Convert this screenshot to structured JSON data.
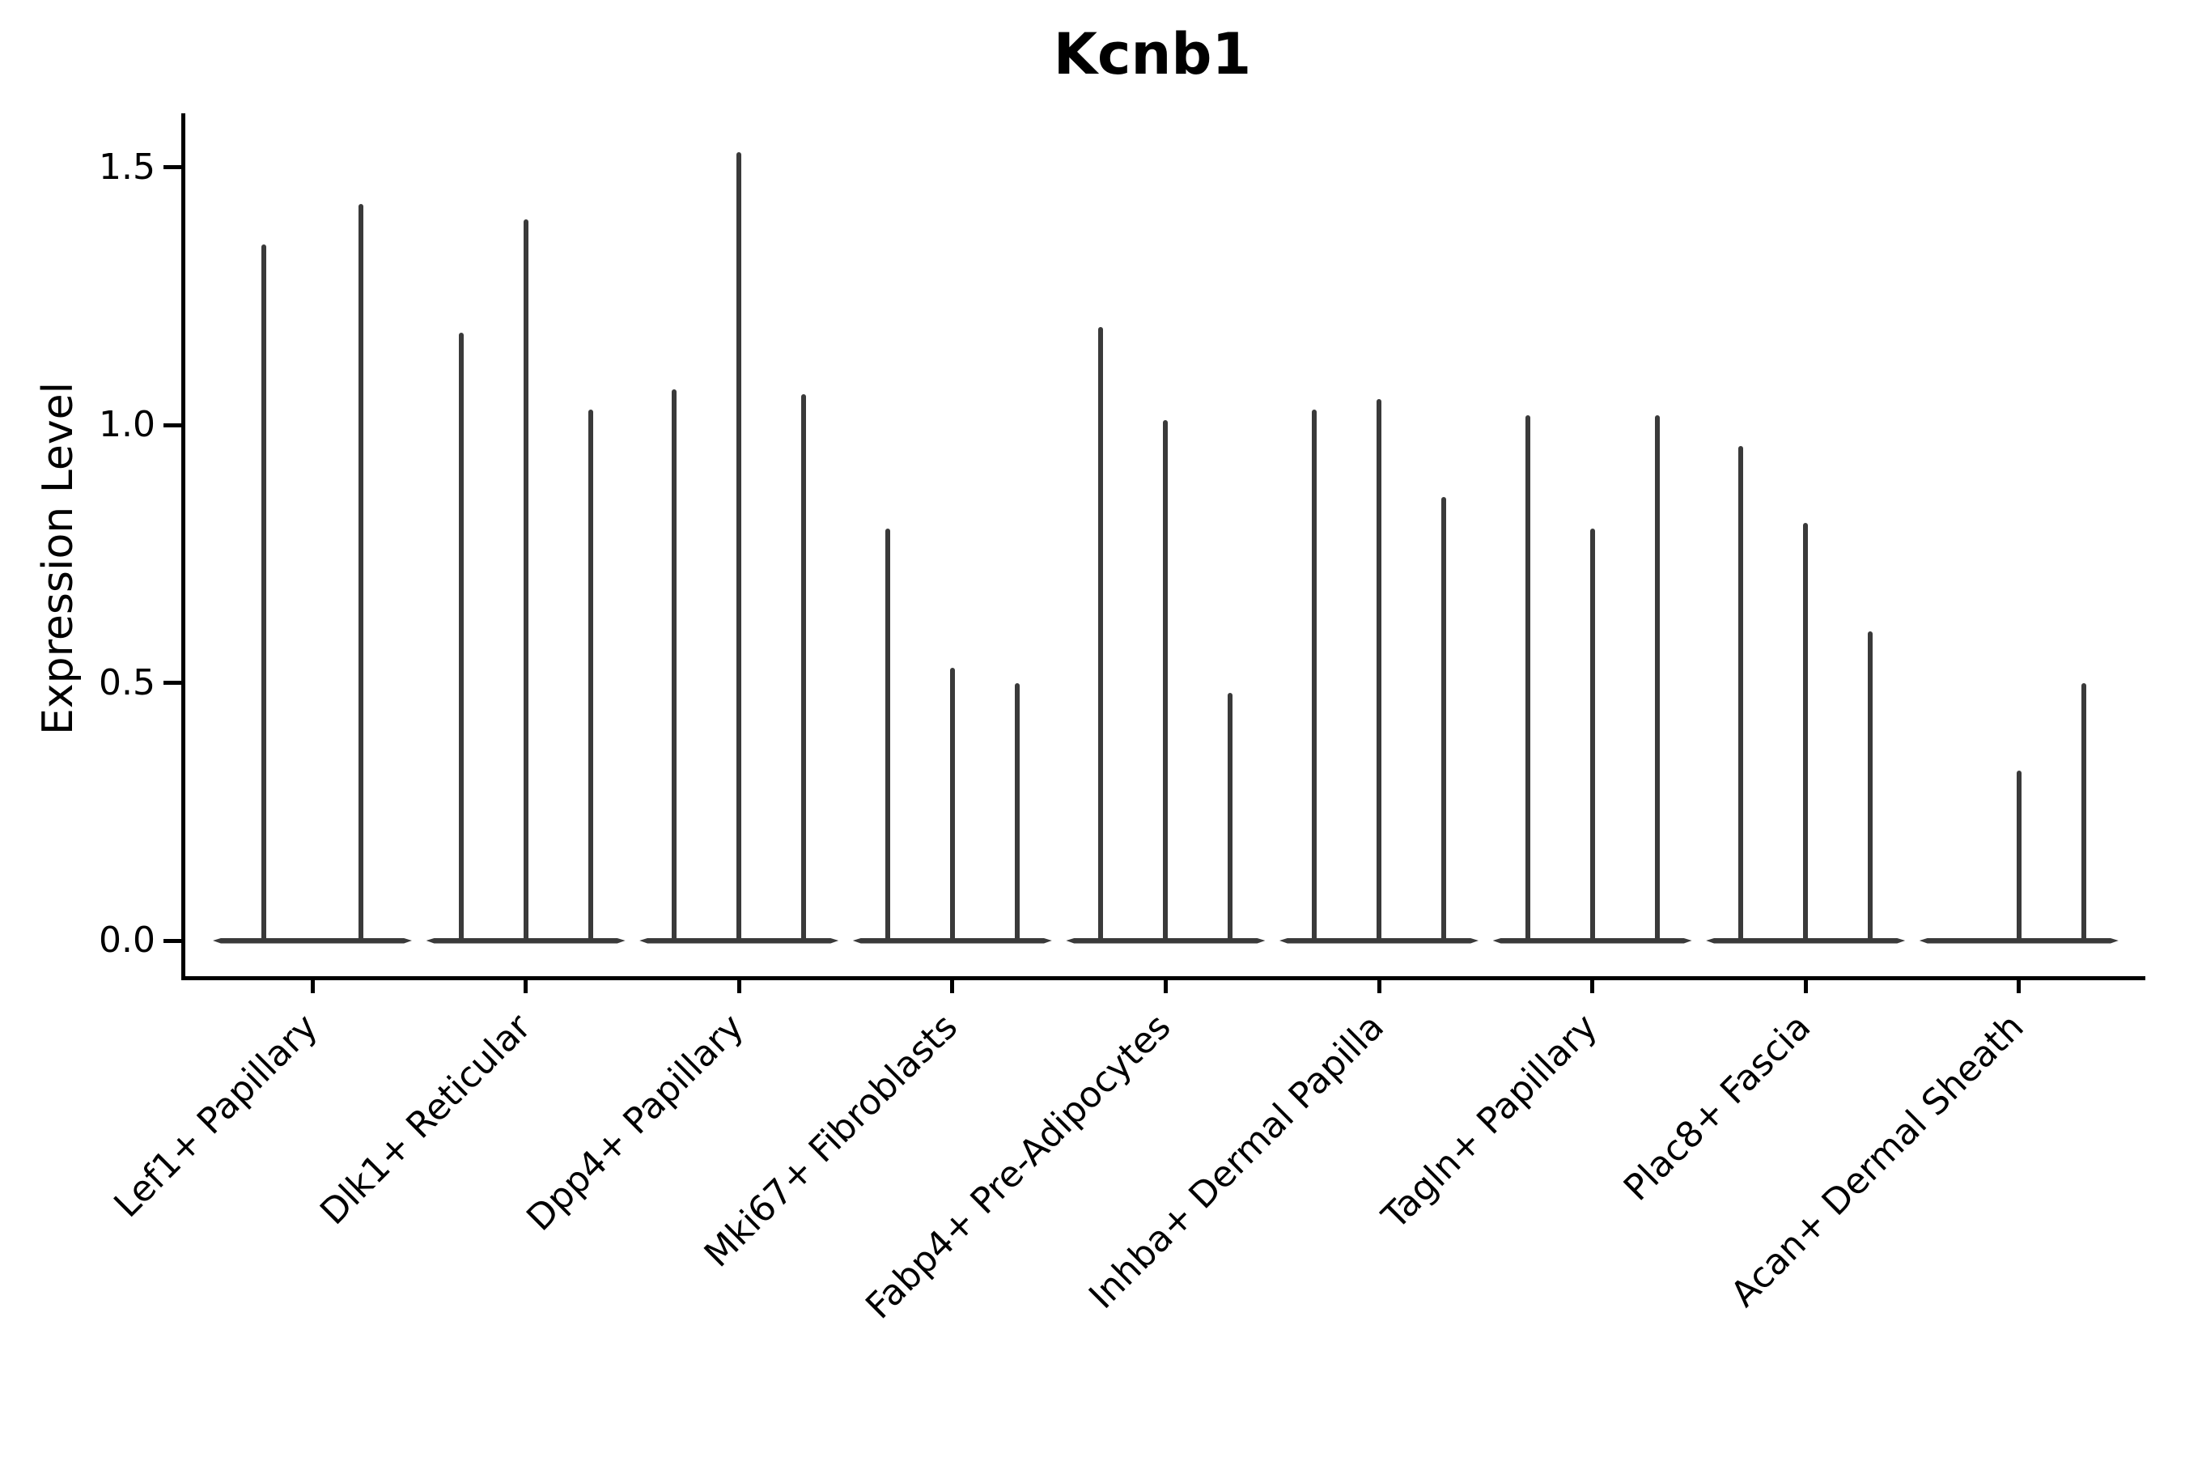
{
  "colors": {
    "background": "#ffffff",
    "violin": "#3a3a3a",
    "axis": "#000000",
    "text": "#000000"
  },
  "chart_data": {
    "type": "violin",
    "title": "Kcnb1",
    "xlabel": "",
    "ylabel": "Expression Level",
    "ylim": [
      0,
      1.57
    ],
    "yticks": [
      0.0,
      0.5,
      1.0,
      1.5
    ],
    "ytick_labels": [
      "0.0",
      "0.5",
      "1.0",
      "1.5"
    ],
    "grid": false,
    "legend": false,
    "spines": [
      "left",
      "bottom"
    ],
    "categories": [
      "Lef1+ Papillary",
      "Dlk1+ Reticular",
      "Dpp4+ Papillary",
      "Mki67+ Fibroblasts",
      "Fabp4+ Pre-Adipocytes",
      "Inhba+ Dermal Papilla",
      "Tagln+ Papillary",
      "Plac8+ Fascia",
      "Acan+ Dermal Sheath"
    ],
    "description": "Violin plot of Kcnb1 expression per cell type; each category holds narrow spike-like violins (grouped sub-violins) rising from a flattened base at expression 0. Values are the peak expression level reached by each spike.",
    "violins": [
      {
        "category": "Lef1+ Papillary",
        "slot_spacing": 60,
        "spikes": [
          {
            "slot": -1,
            "max": 1.35
          },
          {
            "slot": 1,
            "max": 1.43
          }
        ]
      },
      {
        "category": "Dlk1+ Reticular",
        "slot_spacing": 80,
        "spikes": [
          {
            "slot": -1,
            "max": 1.18
          },
          {
            "slot": 0,
            "max": 1.4
          },
          {
            "slot": 1,
            "max": 1.03
          }
        ]
      },
      {
        "category": "Dpp4+ Papillary",
        "slot_spacing": 80,
        "spikes": [
          {
            "slot": -1,
            "max": 1.07
          },
          {
            "slot": 0,
            "max": 1.53
          },
          {
            "slot": 1,
            "max": 1.06
          }
        ]
      },
      {
        "category": "Mki67+ Fibroblasts",
        "slot_spacing": 80,
        "spikes": [
          {
            "slot": -1,
            "max": 0.8
          },
          {
            "slot": 0,
            "max": 0.53
          },
          {
            "slot": 1,
            "max": 0.5
          }
        ]
      },
      {
        "category": "Fabp4+ Pre-Adipocytes",
        "slot_spacing": 80,
        "spikes": [
          {
            "slot": -1,
            "max": 1.19
          },
          {
            "slot": 0,
            "max": 1.01
          },
          {
            "slot": 1,
            "max": 0.48
          }
        ]
      },
      {
        "category": "Inhba+ Dermal Papilla",
        "slot_spacing": 80,
        "spikes": [
          {
            "slot": -1,
            "max": 1.03
          },
          {
            "slot": 0,
            "max": 1.05
          },
          {
            "slot": 1,
            "max": 0.86
          }
        ]
      },
      {
        "category": "Tagln+ Papillary",
        "slot_spacing": 80,
        "spikes": [
          {
            "slot": -1,
            "max": 1.02
          },
          {
            "slot": 0,
            "max": 0.8
          },
          {
            "slot": 1,
            "max": 1.02
          }
        ]
      },
      {
        "category": "Plac8+ Fascia",
        "slot_spacing": 80,
        "spikes": [
          {
            "slot": -1,
            "max": 0.96
          },
          {
            "slot": 0,
            "max": 0.81
          },
          {
            "slot": 1,
            "max": 0.6
          }
        ]
      },
      {
        "category": "Acan+ Dermal Sheath",
        "slot_spacing": 80,
        "spikes": [
          {
            "slot": -1,
            "max": 0.0
          },
          {
            "slot": 0,
            "max": 0.33
          },
          {
            "slot": 1,
            "max": 0.5
          }
        ]
      }
    ]
  }
}
